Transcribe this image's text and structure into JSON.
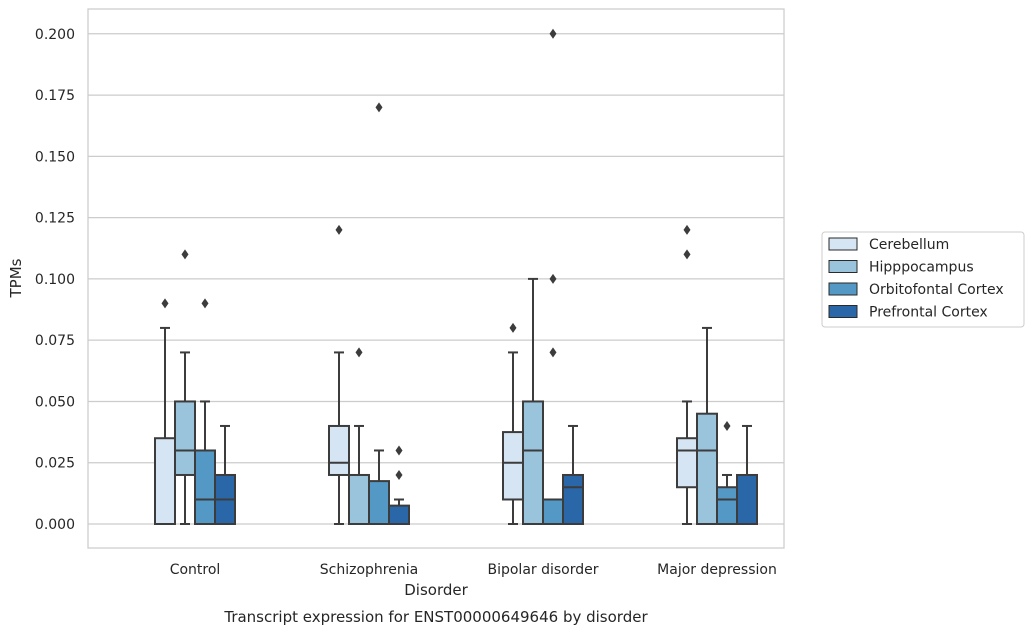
{
  "chart_data": {
    "type": "boxplot",
    "title": "Transcript expression for ENST00000649646 by disorder",
    "xlabel": "Disorder",
    "ylabel": "TPMs",
    "ylim": [
      -0.01,
      0.21
    ],
    "yticks": [
      "0.000",
      "0.025",
      "0.050",
      "0.075",
      "0.100",
      "0.125",
      "0.150",
      "0.175",
      "0.200"
    ],
    "categories": [
      "Control",
      "Schizophrenia",
      "Bipolar disorder",
      "Major depression"
    ],
    "grid": "horizontal",
    "legend_position": "right",
    "series": [
      {
        "name": "Cerebellum",
        "color": "#d6e5f3",
        "boxes": [
          {
            "whislo": 0.0,
            "q1": 0.0,
            "med": 0.0,
            "q3": 0.035,
            "whishi": 0.08,
            "fliers": [
              0.09
            ]
          },
          {
            "whislo": 0.0,
            "q1": 0.02,
            "med": 0.025,
            "q3": 0.04,
            "whishi": 0.07,
            "fliers": [
              0.12
            ]
          },
          {
            "whislo": 0.0,
            "q1": 0.01,
            "med": 0.025,
            "q3": 0.0375,
            "whishi": 0.07,
            "fliers": [
              0.08
            ]
          },
          {
            "whislo": 0.0,
            "q1": 0.015,
            "med": 0.03,
            "q3": 0.035,
            "whishi": 0.05,
            "fliers": [
              0.11,
              0.12
            ]
          }
        ]
      },
      {
        "name": "Hipppocampus",
        "color": "#9ac3dc",
        "boxes": [
          {
            "whislo": 0.0,
            "q1": 0.02,
            "med": 0.03,
            "q3": 0.05,
            "whishi": 0.07,
            "fliers": [
              0.11
            ]
          },
          {
            "whislo": 0.0,
            "q1": 0.0,
            "med": 0.0,
            "q3": 0.02,
            "whishi": 0.04,
            "fliers": [
              0.07
            ]
          },
          {
            "whislo": 0.0,
            "q1": 0.0,
            "med": 0.03,
            "q3": 0.05,
            "whishi": 0.1,
            "fliers": []
          },
          {
            "whislo": 0.0,
            "q1": 0.0,
            "med": 0.03,
            "q3": 0.045,
            "whishi": 0.08,
            "fliers": []
          }
        ]
      },
      {
        "name": "Orbitofontal Cortex",
        "color": "#5498c6",
        "boxes": [
          {
            "whislo": 0.0,
            "q1": 0.0,
            "med": 0.01,
            "q3": 0.03,
            "whishi": 0.05,
            "fliers": [
              0.09
            ]
          },
          {
            "whislo": 0.0,
            "q1": 0.0,
            "med": 0.0,
            "q3": 0.0175,
            "whishi": 0.03,
            "fliers": [
              0.17
            ]
          },
          {
            "whislo": 0.0,
            "q1": 0.0,
            "med": 0.0,
            "q3": 0.01,
            "whishi": 0.01,
            "fliers": [
              0.07,
              0.1,
              0.2
            ]
          },
          {
            "whislo": 0.0,
            "q1": 0.0,
            "med": 0.01,
            "q3": 0.015,
            "whishi": 0.02,
            "fliers": [
              0.04
            ]
          }
        ]
      },
      {
        "name": "Prefrontal Cortex",
        "color": "#2a67a8",
        "boxes": [
          {
            "whislo": 0.0,
            "q1": 0.0,
            "med": 0.01,
            "q3": 0.02,
            "whishi": 0.04,
            "fliers": []
          },
          {
            "whislo": 0.0,
            "q1": 0.0,
            "med": 0.0,
            "q3": 0.0075,
            "whishi": 0.01,
            "fliers": [
              0.02,
              0.03
            ]
          },
          {
            "whislo": 0.0,
            "q1": 0.0,
            "med": 0.015,
            "q3": 0.02,
            "whishi": 0.04,
            "fliers": []
          },
          {
            "whislo": 0.0,
            "q1": 0.0,
            "med": 0.0,
            "q3": 0.02,
            "whishi": 0.04,
            "fliers": []
          }
        ]
      }
    ]
  }
}
